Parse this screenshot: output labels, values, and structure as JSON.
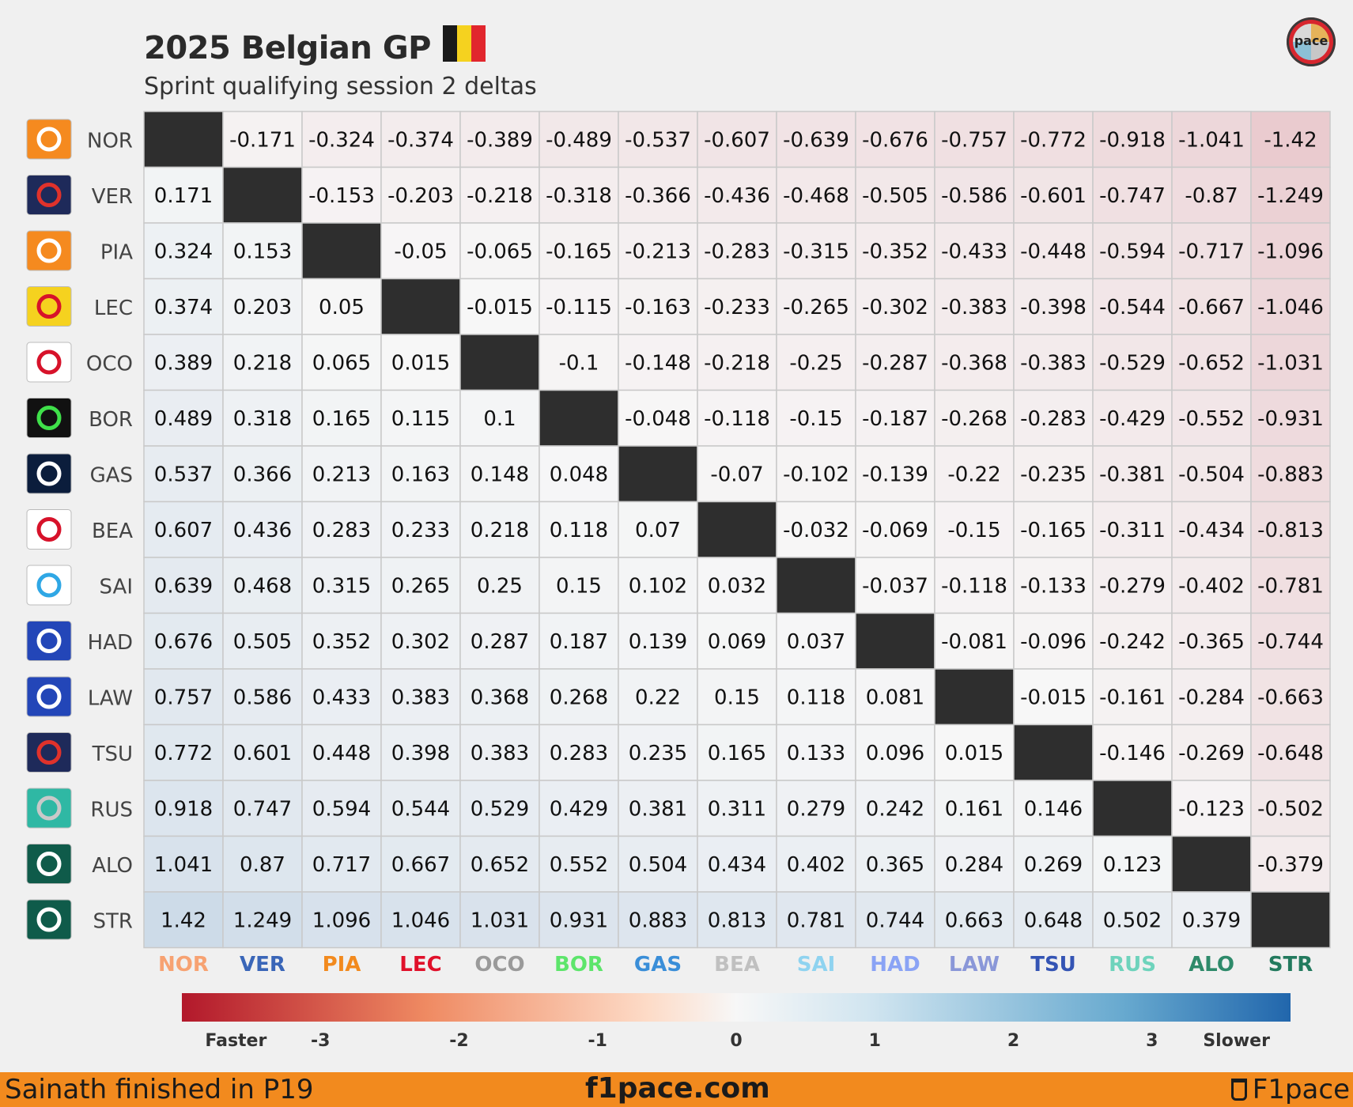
{
  "header": {
    "title": "2025 Belgian GP",
    "subtitle": "Sprint qualifying session 2 deltas",
    "flag_colors": [
      "#1a1a1a",
      "#f5d21f",
      "#e1262d"
    ]
  },
  "logo": {
    "text": "pace",
    "icon": "f1pace-logo-icon"
  },
  "chart_data": {
    "type": "heatmap",
    "title": "2025 Belgian GP",
    "subtitle": "Sprint qualifying session 2 deltas",
    "drivers": [
      "NOR",
      "VER",
      "PIA",
      "LEC",
      "OCO",
      "BOR",
      "GAS",
      "BEA",
      "SAI",
      "HAD",
      "LAW",
      "TSU",
      "RUS",
      "ALO",
      "STR"
    ],
    "team_icons": [
      "mclaren-icon",
      "red-bull-icon",
      "mclaren-icon",
      "ferrari-icon",
      "haas-icon",
      "sauber-icon",
      "alpine-icon",
      "haas-icon",
      "williams-icon",
      "racing-bulls-icon",
      "racing-bulls-icon",
      "red-bull-icon",
      "mercedes-icon",
      "aston-martin-icon",
      "aston-martin-icon"
    ],
    "x_label_colors": [
      "#f7a272",
      "#3a66b8",
      "#f28a1e",
      "#e0102a",
      "#9a9a9a",
      "#5de56b",
      "#3a8ed8",
      "#c0c0c0",
      "#8fd3f0",
      "#8aa3f5",
      "#8a97d8",
      "#3454b4",
      "#6ed3bc",
      "#2e8a6a",
      "#237a5e"
    ],
    "matrix": [
      [
        null,
        -0.171,
        -0.324,
        -0.374,
        -0.389,
        -0.489,
        -0.537,
        -0.607,
        -0.639,
        -0.676,
        -0.757,
        -0.772,
        -0.918,
        -1.041,
        -1.42
      ],
      [
        0.171,
        null,
        -0.153,
        -0.203,
        -0.218,
        -0.318,
        -0.366,
        -0.436,
        -0.468,
        -0.505,
        -0.586,
        -0.601,
        -0.747,
        -0.87,
        -1.249
      ],
      [
        0.324,
        0.153,
        null,
        -0.05,
        -0.065,
        -0.165,
        -0.213,
        -0.283,
        -0.315,
        -0.352,
        -0.433,
        -0.448,
        -0.594,
        -0.717,
        -1.096
      ],
      [
        0.374,
        0.203,
        0.05,
        null,
        -0.015,
        -0.115,
        -0.163,
        -0.233,
        -0.265,
        -0.302,
        -0.383,
        -0.398,
        -0.544,
        -0.667,
        -1.046
      ],
      [
        0.389,
        0.218,
        0.065,
        0.015,
        null,
        -0.1,
        -0.148,
        -0.218,
        -0.25,
        -0.287,
        -0.368,
        -0.383,
        -0.529,
        -0.652,
        -1.031
      ],
      [
        0.489,
        0.318,
        0.165,
        0.115,
        0.1,
        null,
        -0.048,
        -0.118,
        -0.15,
        -0.187,
        -0.268,
        -0.283,
        -0.429,
        -0.552,
        -0.931
      ],
      [
        0.537,
        0.366,
        0.213,
        0.163,
        0.148,
        0.048,
        null,
        -0.07,
        -0.102,
        -0.139,
        -0.22,
        -0.235,
        -0.381,
        -0.504,
        -0.883
      ],
      [
        0.607,
        0.436,
        0.283,
        0.233,
        0.218,
        0.118,
        0.07,
        null,
        -0.032,
        -0.069,
        -0.15,
        -0.165,
        -0.311,
        -0.434,
        -0.813
      ],
      [
        0.639,
        0.468,
        0.315,
        0.265,
        0.25,
        0.15,
        0.102,
        0.032,
        null,
        -0.037,
        -0.118,
        -0.133,
        -0.279,
        -0.402,
        -0.781
      ],
      [
        0.676,
        0.505,
        0.352,
        0.302,
        0.287,
        0.187,
        0.139,
        0.069,
        0.037,
        null,
        -0.081,
        -0.096,
        -0.242,
        -0.365,
        -0.744
      ],
      [
        0.757,
        0.586,
        0.433,
        0.383,
        0.368,
        0.268,
        0.22,
        0.15,
        0.118,
        0.081,
        null,
        -0.015,
        -0.161,
        -0.284,
        -0.663
      ],
      [
        0.772,
        0.601,
        0.448,
        0.398,
        0.383,
        0.283,
        0.235,
        0.165,
        0.133,
        0.096,
        0.015,
        null,
        -0.146,
        -0.269,
        -0.648
      ],
      [
        0.918,
        0.747,
        0.594,
        0.544,
        0.529,
        0.429,
        0.381,
        0.311,
        0.279,
        0.242,
        0.161,
        0.146,
        null,
        -0.123,
        -0.502
      ],
      [
        1.041,
        0.87,
        0.717,
        0.667,
        0.652,
        0.552,
        0.504,
        0.434,
        0.402,
        0.365,
        0.284,
        0.269,
        0.123,
        null,
        -0.379
      ],
      [
        1.42,
        1.249,
        1.096,
        1.046,
        1.031,
        0.931,
        0.883,
        0.813,
        0.781,
        0.744,
        0.663,
        0.648,
        0.502,
        0.379,
        null
      ]
    ],
    "colorbar": {
      "range": [
        -4,
        4
      ],
      "tick_labels": [
        "Faster",
        "-3",
        "-2",
        "-1",
        "0",
        "1",
        "2",
        "3",
        "Slower"
      ],
      "low_color": "#b2182b",
      "mid_color": "#f7f7f7",
      "high_color": "#2166ac"
    },
    "diagonal_color": "#2e2e2e"
  },
  "footer": {
    "left": "Sainath finished in P19",
    "center": "f1pace.com",
    "right": "F1pace",
    "background": "#f28a1e"
  }
}
